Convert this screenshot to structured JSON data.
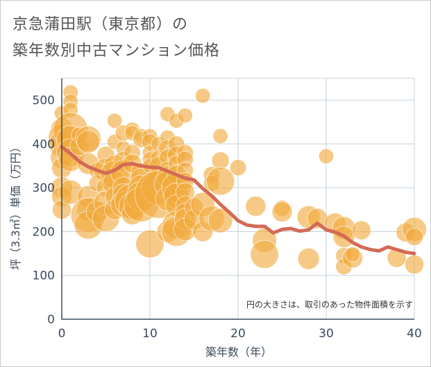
{
  "title_line1": "京急蒲田駅（東京都）の",
  "title_line2": "築年数別中古マンション価格",
  "colors": {
    "bubble": "#f0a93c",
    "line": "#d36a55",
    "grid": "#c4d0da",
    "axis": "#3a4a5c"
  },
  "chart_data": {
    "type": "scatter",
    "xlabel": "築年数（年）",
    "ylabel": "坪（3.3㎡）単価（万円）",
    "xlim": [
      0,
      40
    ],
    "ylim": [
      0,
      550
    ],
    "x_ticks": [
      "0",
      "10",
      "20",
      "30",
      "40"
    ],
    "y_ticks": [
      "0",
      "100",
      "200",
      "300",
      "400",
      "500"
    ],
    "grid": true,
    "note": "円の大きさは、取引のあった物件面積を示す",
    "trend_line": {
      "x": [
        0,
        1,
        2,
        3,
        4,
        5,
        6,
        7,
        8,
        9,
        10,
        11,
        12,
        13,
        14,
        15,
        16,
        17,
        18,
        19,
        20,
        21,
        22,
        23,
        24,
        25,
        26,
        27,
        28,
        29,
        30,
        31,
        32,
        33,
        34,
        35,
        36,
        37,
        38,
        39,
        40
      ],
      "y": [
        393,
        378,
        360,
        348,
        340,
        333,
        340,
        353,
        355,
        350,
        347,
        346,
        338,
        330,
        322,
        318,
        298,
        282,
        262,
        244,
        225,
        215,
        212,
        212,
        197,
        205,
        207,
        201,
        204,
        219,
        204,
        199,
        190,
        175,
        165,
        159,
        156,
        165,
        159,
        153,
        150
      ]
    },
    "bubbles": [
      {
        "x": 0,
        "y": 435,
        "s": 1.0
      },
      {
        "x": 0,
        "y": 415,
        "s": 1.4
      },
      {
        "x": 0,
        "y": 400,
        "s": 1.3
      },
      {
        "x": 0,
        "y": 370,
        "s": 1.1
      },
      {
        "x": 0,
        "y": 345,
        "s": 0.9
      },
      {
        "x": 0,
        "y": 300,
        "s": 1.0
      },
      {
        "x": 0,
        "y": 280,
        "s": 0.9
      },
      {
        "x": 0,
        "y": 250,
        "s": 0.8
      },
      {
        "x": 0,
        "y": 470,
        "s": 0.5
      },
      {
        "x": 1,
        "y": 518,
        "s": 0.5
      },
      {
        "x": 1,
        "y": 497,
        "s": 0.5
      },
      {
        "x": 1,
        "y": 478,
        "s": 0.5
      },
      {
        "x": 1,
        "y": 432,
        "s": 2.0
      },
      {
        "x": 1,
        "y": 410,
        "s": 1.5
      },
      {
        "x": 1,
        "y": 380,
        "s": 1.5
      },
      {
        "x": 1,
        "y": 365,
        "s": 1.2
      },
      {
        "x": 1,
        "y": 290,
        "s": 1.2
      },
      {
        "x": 2,
        "y": 420,
        "s": 0.6
      },
      {
        "x": 2,
        "y": 395,
        "s": 0.8
      },
      {
        "x": 3,
        "y": 412,
        "s": 1.3
      },
      {
        "x": 3,
        "y": 405,
        "s": 1.1
      },
      {
        "x": 3,
        "y": 355,
        "s": 1.0
      },
      {
        "x": 3,
        "y": 280,
        "s": 1.0
      },
      {
        "x": 3,
        "y": 250,
        "s": 1.1
      },
      {
        "x": 3,
        "y": 238,
        "s": 2.0
      },
      {
        "x": 3,
        "y": 215,
        "s": 1.5
      },
      {
        "x": 4,
        "y": 340,
        "s": 0.6
      },
      {
        "x": 4,
        "y": 310,
        "s": 0.6
      },
      {
        "x": 4,
        "y": 245,
        "s": 1.0
      },
      {
        "x": 5,
        "y": 375,
        "s": 0.7
      },
      {
        "x": 5,
        "y": 340,
        "s": 1.2
      },
      {
        "x": 5,
        "y": 300,
        "s": 0.8
      },
      {
        "x": 5,
        "y": 265,
        "s": 1.2
      },
      {
        "x": 5,
        "y": 230,
        "s": 1.4
      },
      {
        "x": 6,
        "y": 453,
        "s": 0.5
      },
      {
        "x": 6,
        "y": 405,
        "s": 0.5
      },
      {
        "x": 6,
        "y": 350,
        "s": 1.0
      },
      {
        "x": 6,
        "y": 330,
        "s": 1.5
      },
      {
        "x": 6,
        "y": 310,
        "s": 1.2
      },
      {
        "x": 6,
        "y": 280,
        "s": 0.8
      },
      {
        "x": 6,
        "y": 250,
        "s": 0.9
      },
      {
        "x": 7,
        "y": 425,
        "s": 0.6
      },
      {
        "x": 7,
        "y": 390,
        "s": 0.5
      },
      {
        "x": 7,
        "y": 360,
        "s": 0.9
      },
      {
        "x": 7,
        "y": 335,
        "s": 1.3
      },
      {
        "x": 7,
        "y": 300,
        "s": 1.0
      },
      {
        "x": 7,
        "y": 285,
        "s": 1.0
      },
      {
        "x": 7,
        "y": 262,
        "s": 1.3
      },
      {
        "x": 8,
        "y": 433,
        "s": 0.5
      },
      {
        "x": 8,
        "y": 425,
        "s": 0.5
      },
      {
        "x": 8,
        "y": 380,
        "s": 0.6
      },
      {
        "x": 8,
        "y": 355,
        "s": 0.8
      },
      {
        "x": 8,
        "y": 270,
        "s": 2.0
      },
      {
        "x": 8,
        "y": 258,
        "s": 1.4
      },
      {
        "x": 8,
        "y": 240,
        "s": 1.0
      },
      {
        "x": 9,
        "y": 418,
        "s": 0.5
      },
      {
        "x": 9,
        "y": 410,
        "s": 0.6
      },
      {
        "x": 9,
        "y": 335,
        "s": 0.9
      },
      {
        "x": 9,
        "y": 320,
        "s": 1.0
      },
      {
        "x": 9,
        "y": 300,
        "s": 1.3
      },
      {
        "x": 9,
        "y": 280,
        "s": 1.6
      },
      {
        "x": 9,
        "y": 262,
        "s": 2.0
      },
      {
        "x": 10,
        "y": 418,
        "s": 0.5
      },
      {
        "x": 10,
        "y": 405,
        "s": 0.6
      },
      {
        "x": 10,
        "y": 380,
        "s": 0.5
      },
      {
        "x": 10,
        "y": 365,
        "s": 0.5
      },
      {
        "x": 10,
        "y": 350,
        "s": 0.5
      },
      {
        "x": 10,
        "y": 172,
        "s": 1.5
      },
      {
        "x": 11,
        "y": 400,
        "s": 0.5
      },
      {
        "x": 11,
        "y": 368,
        "s": 0.6
      },
      {
        "x": 11,
        "y": 350,
        "s": 0.8
      },
      {
        "x": 11,
        "y": 325,
        "s": 1.0
      },
      {
        "x": 11,
        "y": 310,
        "s": 1.3
      },
      {
        "x": 11,
        "y": 300,
        "s": 2.0
      },
      {
        "x": 11,
        "y": 285,
        "s": 3.0
      },
      {
        "x": 12,
        "y": 468,
        "s": 0.5
      },
      {
        "x": 12,
        "y": 415,
        "s": 0.5
      },
      {
        "x": 12,
        "y": 390,
        "s": 0.7
      },
      {
        "x": 12,
        "y": 370,
        "s": 0.6
      },
      {
        "x": 12,
        "y": 340,
        "s": 0.7
      },
      {
        "x": 12,
        "y": 325,
        "s": 1.0
      },
      {
        "x": 12,
        "y": 308,
        "s": 1.4
      },
      {
        "x": 12,
        "y": 275,
        "s": 1.2
      },
      {
        "x": 12,
        "y": 200,
        "s": 1.0
      },
      {
        "x": 13,
        "y": 453,
        "s": 0.5
      },
      {
        "x": 13,
        "y": 400,
        "s": 0.6
      },
      {
        "x": 13,
        "y": 375,
        "s": 0.7
      },
      {
        "x": 13,
        "y": 355,
        "s": 0.6
      },
      {
        "x": 13,
        "y": 330,
        "s": 0.8
      },
      {
        "x": 13,
        "y": 300,
        "s": 1.6
      },
      {
        "x": 13,
        "y": 282,
        "s": 1.3
      },
      {
        "x": 13,
        "y": 260,
        "s": 1.0
      },
      {
        "x": 13,
        "y": 215,
        "s": 1.5
      },
      {
        "x": 13,
        "y": 200,
        "s": 1.6
      },
      {
        "x": 14,
        "y": 465,
        "s": 0.5
      },
      {
        "x": 14,
        "y": 380,
        "s": 0.6
      },
      {
        "x": 14,
        "y": 365,
        "s": 0.6
      },
      {
        "x": 14,
        "y": 340,
        "s": 0.6
      },
      {
        "x": 14,
        "y": 315,
        "s": 0.7
      },
      {
        "x": 14,
        "y": 290,
        "s": 0.8
      },
      {
        "x": 14,
        "y": 260,
        "s": 0.8
      },
      {
        "x": 14,
        "y": 242,
        "s": 0.9
      },
      {
        "x": 14,
        "y": 228,
        "s": 1.0
      },
      {
        "x": 14,
        "y": 205,
        "s": 1.1
      },
      {
        "x": 15,
        "y": 255,
        "s": 0.8
      },
      {
        "x": 15,
        "y": 228,
        "s": 0.9
      },
      {
        "x": 16,
        "y": 510,
        "s": 0.5
      },
      {
        "x": 16,
        "y": 262,
        "s": 1.2
      },
      {
        "x": 16,
        "y": 200,
        "s": 0.9
      },
      {
        "x": 17,
        "y": 330,
        "s": 0.6
      },
      {
        "x": 17,
        "y": 310,
        "s": 0.6
      },
      {
        "x": 17,
        "y": 230,
        "s": 1.3
      },
      {
        "x": 18,
        "y": 418,
        "s": 0.5
      },
      {
        "x": 18,
        "y": 362,
        "s": 0.7
      },
      {
        "x": 18,
        "y": 315,
        "s": 1.5
      },
      {
        "x": 18,
        "y": 225,
        "s": 1.2
      },
      {
        "x": 20,
        "y": 346,
        "s": 0.6
      },
      {
        "x": 22,
        "y": 258,
        "s": 0.9
      },
      {
        "x": 23,
        "y": 180,
        "s": 1.2
      },
      {
        "x": 23,
        "y": 148,
        "s": 1.5
      },
      {
        "x": 25,
        "y": 253,
        "s": 0.6
      },
      {
        "x": 25,
        "y": 245,
        "s": 0.9
      },
      {
        "x": 28,
        "y": 233,
        "s": 1.1
      },
      {
        "x": 28,
        "y": 138,
        "s": 1.0
      },
      {
        "x": 29,
        "y": 230,
        "s": 0.9
      },
      {
        "x": 30,
        "y": 372,
        "s": 0.5
      },
      {
        "x": 31,
        "y": 218,
        "s": 1.0
      },
      {
        "x": 32,
        "y": 208,
        "s": 1.1
      },
      {
        "x": 32,
        "y": 188,
        "s": 1.0
      },
      {
        "x": 32,
        "y": 145,
        "s": 0.6
      },
      {
        "x": 32,
        "y": 120,
        "s": 0.6
      },
      {
        "x": 33,
        "y": 140,
        "s": 0.9
      },
      {
        "x": 33,
        "y": 148,
        "s": 0.5
      },
      {
        "x": 34,
        "y": 203,
        "s": 0.8
      },
      {
        "x": 38,
        "y": 140,
        "s": 0.8
      },
      {
        "x": 39,
        "y": 198,
        "s": 0.8
      },
      {
        "x": 40,
        "y": 205,
        "s": 1.2
      },
      {
        "x": 40,
        "y": 188,
        "s": 0.7
      },
      {
        "x": 40,
        "y": 125,
        "s": 0.8
      }
    ]
  }
}
